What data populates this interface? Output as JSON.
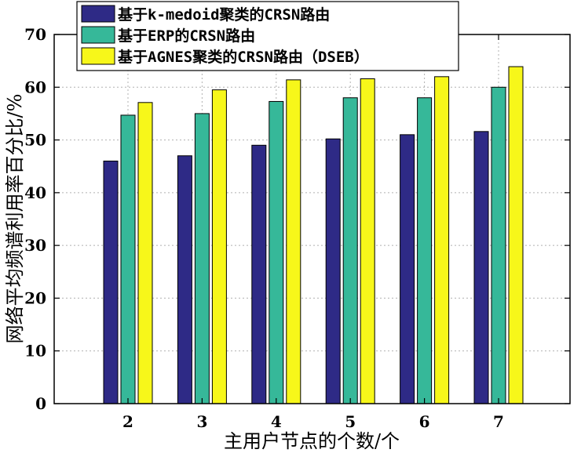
{
  "chart_data": {
    "type": "bar",
    "title": "",
    "xlabel": "主用户节点的个数/个",
    "ylabel": "网络平均频谱利用率百分比/%",
    "categories": [
      "2",
      "3",
      "4",
      "5",
      "6",
      "7"
    ],
    "ylim": [
      0,
      70
    ],
    "yticks": [
      "0",
      "10",
      "20",
      "30",
      "40",
      "50",
      "60",
      "70"
    ],
    "grid": true,
    "legend_position": "top-left",
    "series": [
      {
        "name": "基于k-medoid聚类的CRSN路由",
        "color": "#2e2a86",
        "values": [
          46,
          47,
          49,
          50.2,
          51,
          51.6
        ]
      },
      {
        "name": "基于ERP的CRSN路由",
        "color": "#36b899",
        "values": [
          54.7,
          55,
          57.3,
          58,
          58,
          60
        ]
      },
      {
        "name": "基于AGNES聚类的CRSN路由（DSEB）",
        "color": "#f7f71a",
        "values": [
          57.1,
          59.5,
          61.4,
          61.6,
          62,
          63.9
        ]
      }
    ]
  }
}
